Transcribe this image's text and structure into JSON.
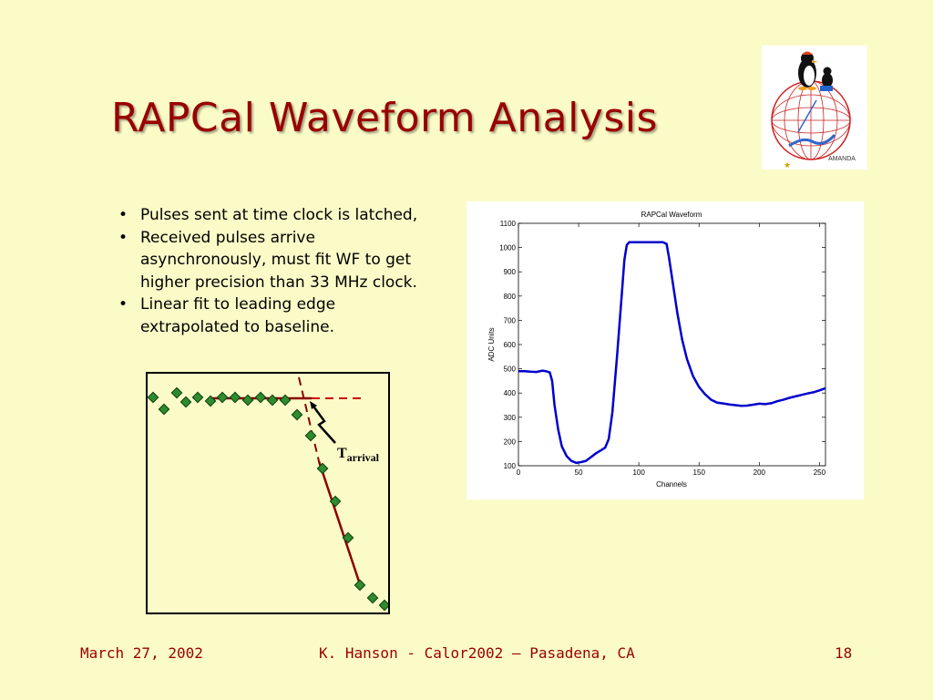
{
  "slide": {
    "title": "RAPCal Waveform Analysis",
    "bullets": [
      "Pulses sent at time clock is latched,",
      "Received pulses arrive asynchronously, must fit WF to get higher precision than 33 MHz clock.",
      "Linear fit to leading edge extrapolated to baseline."
    ],
    "bullet_lines": [
      [
        "Pulses sent at time clock is latched,"
      ],
      [
        "Received pulses arrive",
        "asynchronously, must fit WF to get",
        "higher precision than 33 MHz clock."
      ],
      [
        "Linear fit to leading edge",
        "extrapolated to baseline."
      ]
    ],
    "bullet_glyph": "•"
  },
  "logo": {
    "label": "AMANDA",
    "icon": "penguin-globe-logo"
  },
  "inset_diagram": {
    "label_main": "T",
    "label_sub": "arrival",
    "colors": {
      "points": "#2e8b2e",
      "fit_line": "#8b0000",
      "dashed": "#cc0000"
    }
  },
  "chart_data": {
    "type": "line",
    "title": "RAPCal Waveform",
    "xlabel": "Channels",
    "ylabel": "ADC Units",
    "xlim": [
      0,
      255
    ],
    "ylim": [
      100,
      1100
    ],
    "xticks": [
      0,
      50,
      100,
      150,
      200,
      250
    ],
    "yticks": [
      100,
      200,
      300,
      400,
      500,
      600,
      700,
      800,
      900,
      1000,
      1100
    ],
    "grid": false,
    "series": [
      {
        "color": "#0000cc",
        "x": [
          0,
          5,
          10,
          15,
          20,
          23,
          26,
          28,
          30,
          33,
          36,
          40,
          44,
          48,
          52,
          56,
          60,
          64,
          68,
          72,
          75,
          78,
          82,
          86,
          88,
          90,
          92,
          95,
          100,
          105,
          110,
          115,
          120,
          123,
          125,
          128,
          132,
          136,
          140,
          145,
          150,
          155,
          160,
          165,
          170,
          175,
          180,
          185,
          190,
          195,
          200,
          205,
          210,
          215,
          220,
          225,
          230,
          235,
          240,
          245,
          250,
          255
        ],
        "y": [
          490,
          490,
          488,
          487,
          492,
          490,
          485,
          450,
          350,
          250,
          180,
          140,
          120,
          112,
          115,
          120,
          135,
          150,
          162,
          175,
          210,
          320,
          560,
          820,
          950,
          1010,
          1022,
          1022,
          1022,
          1022,
          1022,
          1022,
          1022,
          1015,
          960,
          860,
          730,
          620,
          540,
          470,
          425,
          395,
          372,
          360,
          357,
          353,
          350,
          347,
          348,
          352,
          356,
          354,
          358,
          366,
          372,
          380,
          386,
          392,
          398,
          403,
          411,
          420
        ]
      }
    ]
  },
  "footer": {
    "date": "March 27, 2002",
    "center": "K. Hanson - Calor2002 – Pasadena, CA",
    "page": "18"
  }
}
